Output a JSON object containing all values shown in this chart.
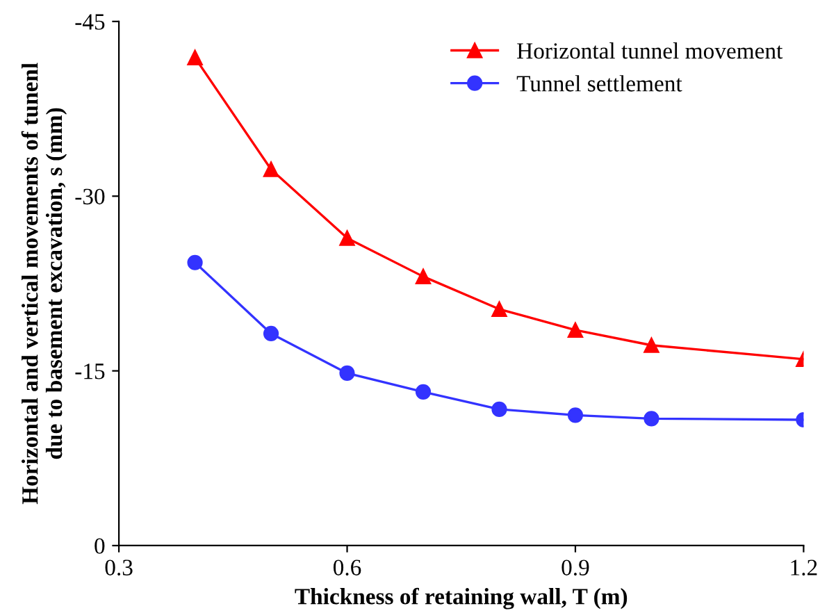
{
  "chart_data": {
    "type": "line",
    "xlabel": "Thickness of retaining wall, T (m)",
    "ylabel": "Horizontal and vertical movements of tunenl\ndue to basement excavation, s (mm)",
    "x": [
      0.4,
      0.5,
      0.6,
      0.7,
      0.8,
      0.9,
      1.0,
      1.2
    ],
    "series": [
      {
        "name": "Horizontal tunnel movement",
        "color": "#ff0000",
        "marker": "triangle",
        "values": [
          -41.9,
          -32.3,
          -26.4,
          -23.1,
          -20.3,
          -18.5,
          -17.2,
          -16.0
        ]
      },
      {
        "name": "Tunnel settlement",
        "color": "#3333ff",
        "marker": "circle",
        "values": [
          -24.3,
          -18.2,
          -14.8,
          -13.2,
          -11.7,
          -11.2,
          -10.9,
          -10.8
        ]
      }
    ],
    "xlim": [
      0.3,
      1.2
    ],
    "xticks": [
      0.3,
      0.6,
      0.9,
      1.2
    ],
    "ylim": [
      0,
      -45
    ],
    "yticks": [
      0,
      -15,
      -30,
      -45
    ],
    "grid": false,
    "legend": "top right",
    "line_style": "solid"
  }
}
